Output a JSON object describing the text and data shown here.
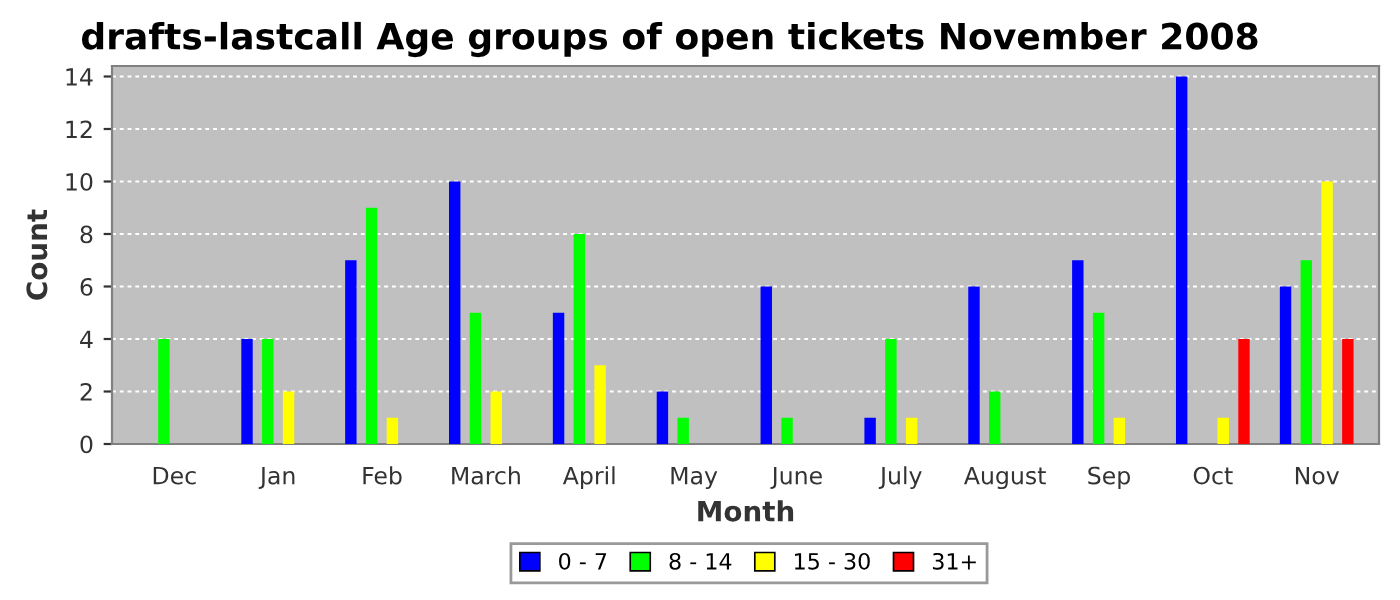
{
  "chart_data": {
    "type": "bar",
    "title": "drafts-lastcall Age groups of open tickets November 2008",
    "xlabel": "Month",
    "ylabel": "Count",
    "categories": [
      "Dec",
      "Jan",
      "Feb",
      "March",
      "April",
      "May",
      "June",
      "July",
      "August",
      "Sep",
      "Oct",
      "Nov"
    ],
    "series": [
      {
        "name": "0 - 7",
        "color": "#0000ff",
        "values": [
          0,
          4,
          7,
          10,
          5,
          2,
          6,
          1,
          6,
          7,
          14,
          6
        ]
      },
      {
        "name": "8 - 14",
        "color": "#00ff00",
        "values": [
          4,
          4,
          9,
          5,
          8,
          1,
          1,
          4,
          2,
          5,
          0,
          7
        ]
      },
      {
        "name": "15 - 30",
        "color": "#ffff00",
        "values": [
          0,
          2,
          1,
          2,
          3,
          0,
          0,
          1,
          0,
          1,
          1,
          10
        ]
      },
      {
        "name": "31+",
        "color": "#ff0000",
        "values": [
          0,
          0,
          0,
          0,
          0,
          0,
          0,
          0,
          0,
          0,
          4,
          4
        ]
      }
    ],
    "ylim": [
      0,
      14.4
    ],
    "yticks": [
      0,
      2,
      4,
      6,
      8,
      10,
      12,
      14
    ],
    "grid": "y",
    "legend": "bottom"
  }
}
